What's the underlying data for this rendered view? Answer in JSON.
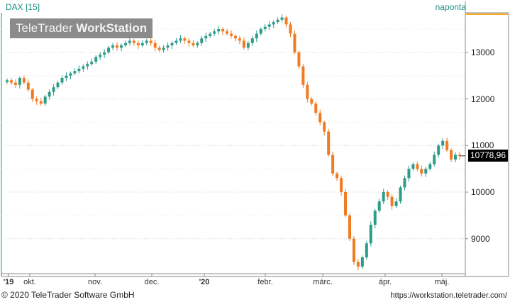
{
  "header": {
    "ticker": "DAX [15]",
    "period": "naponta",
    "watermark_light": "TeleTrader",
    "watermark_bold": "WorkStation"
  },
  "last_value": "10778,96",
  "footer": {
    "copyright": "© 2020 TeleTrader Software GmbH",
    "url": "https://workstation.teletrader.com/"
  },
  "colors": {
    "up": "#2e9c8a",
    "down": "#f07b22",
    "grid": "#cfcfcf",
    "accent": "#1e8f86",
    "last_line": "#f5a623"
  },
  "chart_data": {
    "type": "candlestick",
    "y_ticks": [
      9000,
      10000,
      11000,
      12000,
      13000
    ],
    "y_tick_labels": [
      "9000",
      "10000",
      "11000",
      "12000",
      "13000"
    ],
    "ylim": [
      8250,
      13850
    ],
    "x_tick_labels": [
      "'19",
      "okt.",
      "nov.",
      "dec.",
      "'20",
      "febr.",
      "márc.",
      "ápr.",
      "máj."
    ],
    "series": [
      {
        "values": [
          12400,
          12350,
          12300,
          12450,
          12350,
          12200,
          12000,
          11950,
          11900,
          12050,
          12150,
          12250,
          12350,
          12450,
          12500,
          12550,
          12600,
          12650,
          12700,
          12750,
          12800,
          12900,
          12950,
          13000,
          13100,
          13150,
          13100,
          13150,
          13200,
          13250,
          13200,
          13150,
          13200,
          13250,
          13200,
          13100,
          13050,
          13100,
          13150,
          13200,
          13250,
          13300,
          13250,
          13200,
          13150,
          13200,
          13300,
          13350,
          13400,
          13450,
          13500,
          13450,
          13400,
          13350,
          13300,
          13250,
          13100,
          13200,
          13300,
          13400,
          13500,
          13550,
          13600,
          13650,
          13700,
          13750,
          13600,
          13400,
          13000,
          12700,
          12300,
          12000,
          11900,
          11700,
          11500,
          11300,
          10800,
          10400,
          10300,
          10000,
          9500,
          9000,
          8500,
          8400,
          8600,
          8900,
          9300,
          9600,
          9800,
          10000,
          9900,
          9700,
          9800,
          10100,
          10300,
          10500,
          10600,
          10500,
          10400,
          10500,
          10600,
          10800,
          11000,
          11100,
          10900,
          10700,
          10800,
          10778.96
        ]
      }
    ]
  }
}
